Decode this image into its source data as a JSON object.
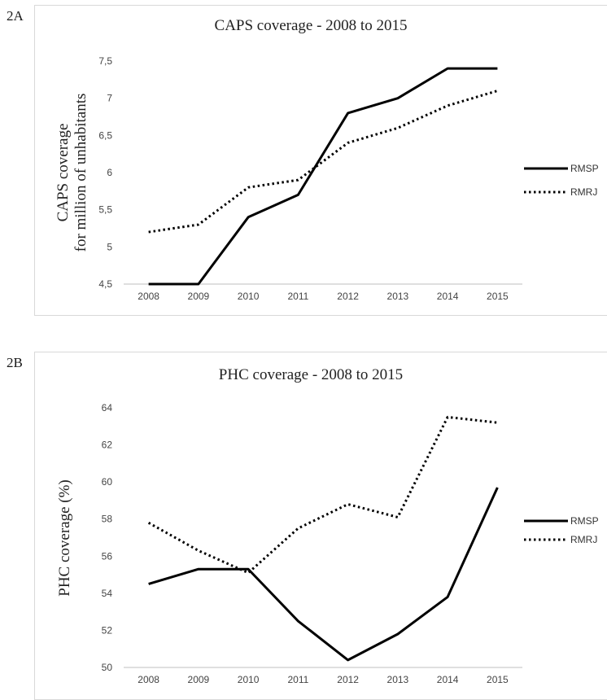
{
  "panels": [
    {
      "label": "2A"
    },
    {
      "label": "2B"
    }
  ],
  "chart_data": [
    {
      "type": "line",
      "title": "CAPS coverage - 2008 to 2015",
      "ylabel": [
        "CAPS coverage",
        "for million of unhabitants"
      ],
      "xlabel": "",
      "categories": [
        "2008",
        "2009",
        "2010",
        "2011",
        "2012",
        "2013",
        "2014",
        "2015"
      ],
      "yticks": [
        "4,5",
        "5",
        "5,5",
        "6",
        "6,5",
        "7",
        "7,5"
      ],
      "ylim": [
        4.5,
        7.5
      ],
      "grid": false,
      "legend": "right",
      "series": [
        {
          "name": "RMSP",
          "style": "solid",
          "color": "#000000",
          "values": [
            4.5,
            4.5,
            5.4,
            5.7,
            6.8,
            7.0,
            7.4,
            7.4
          ]
        },
        {
          "name": "RMRJ",
          "style": "dotted",
          "color": "#000000",
          "values": [
            5.2,
            5.3,
            5.8,
            5.9,
            6.4,
            6.6,
            6.9,
            7.1
          ]
        }
      ]
    },
    {
      "type": "line",
      "title": "PHC coverage - 2008 to 2015",
      "ylabel": [
        "PHC coverage (%)"
      ],
      "xlabel": "",
      "categories": [
        "2008",
        "2009",
        "2010",
        "2011",
        "2012",
        "2013",
        "2014",
        "2015"
      ],
      "yticks": [
        "50",
        "52",
        "54",
        "56",
        "58",
        "60",
        "62",
        "64"
      ],
      "ylim": [
        50,
        64
      ],
      "grid": false,
      "legend": "right",
      "series": [
        {
          "name": "RMSP",
          "style": "solid",
          "color": "#000000",
          "values": [
            54.5,
            55.3,
            55.3,
            52.5,
            50.4,
            51.8,
            53.8,
            59.7
          ]
        },
        {
          "name": "RMRJ",
          "style": "dotted",
          "color": "#000000",
          "values": [
            57.8,
            56.3,
            55.1,
            57.5,
            58.8,
            58.1,
            63.5,
            63.2
          ]
        }
      ]
    }
  ]
}
